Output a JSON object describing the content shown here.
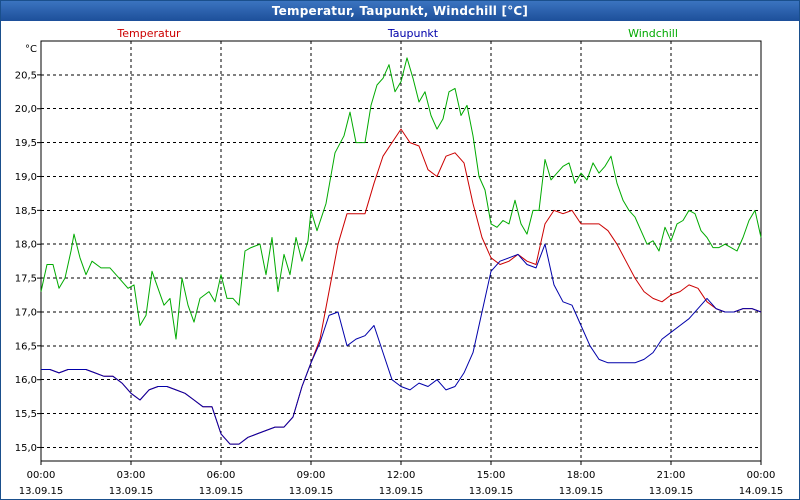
{
  "window": {
    "title": "Temperatur, Taupunkt, Windchill [°C]"
  },
  "chart_data": {
    "type": "line",
    "ylabel": "°C",
    "ylim": [
      14.8,
      21.0
    ],
    "yticks": [
      "15,0",
      "15,5",
      "16,0",
      "16,5",
      "17,0",
      "17,5",
      "18,0",
      "18,5",
      "19,0",
      "19,5",
      "20,0",
      "20,5"
    ],
    "ytick_values": [
      15.0,
      15.5,
      16.0,
      16.5,
      17.0,
      17.5,
      18.0,
      18.5,
      19.0,
      19.5,
      20.0,
      20.5
    ],
    "xlim": [
      0,
      24
    ],
    "xticks": [
      {
        "hour": 0,
        "time": "00:00",
        "date": "13.09.15"
      },
      {
        "hour": 3,
        "time": "03:00",
        "date": "13.09.15"
      },
      {
        "hour": 6,
        "time": "06:00",
        "date": "13.09.15"
      },
      {
        "hour": 9,
        "time": "09:00",
        "date": "13.09.15"
      },
      {
        "hour": 12,
        "time": "12:00",
        "date": "13.09.15"
      },
      {
        "hour": 15,
        "time": "15:00",
        "date": "13.09.15"
      },
      {
        "hour": 18,
        "time": "18:00",
        "date": "13.09.15"
      },
      {
        "hour": 21,
        "time": "21:00",
        "date": "13.09.15"
      },
      {
        "hour": 24,
        "time": "00:00",
        "date": "14.09.15"
      }
    ],
    "grid": true,
    "series": [
      {
        "name": "Temperatur",
        "color": "#cc0000",
        "points": [
          [
            0,
            16.15
          ],
          [
            0.3,
            16.15
          ],
          [
            0.6,
            16.1
          ],
          [
            0.9,
            16.15
          ],
          [
            1.2,
            16.15
          ],
          [
            1.5,
            16.15
          ],
          [
            1.8,
            16.1
          ],
          [
            2.1,
            16.05
          ],
          [
            2.4,
            16.05
          ],
          [
            2.7,
            15.95
          ],
          [
            3.0,
            15.8
          ],
          [
            3.3,
            15.7
          ],
          [
            3.6,
            15.85
          ],
          [
            3.9,
            15.9
          ],
          [
            4.2,
            15.9
          ],
          [
            4.5,
            15.85
          ],
          [
            4.8,
            15.8
          ],
          [
            5.1,
            15.7
          ],
          [
            5.4,
            15.6
          ],
          [
            5.7,
            15.6
          ],
          [
            6.0,
            15.2
          ],
          [
            6.3,
            15.05
          ],
          [
            6.6,
            15.05
          ],
          [
            6.9,
            15.15
          ],
          [
            7.2,
            15.2
          ],
          [
            7.5,
            15.25
          ],
          [
            7.8,
            15.3
          ],
          [
            8.1,
            15.3
          ],
          [
            8.4,
            15.45
          ],
          [
            8.7,
            15.9
          ],
          [
            9.0,
            16.25
          ],
          [
            9.3,
            16.6
          ],
          [
            9.6,
            17.3
          ],
          [
            9.9,
            18.0
          ],
          [
            10.2,
            18.45
          ],
          [
            10.5,
            18.45
          ],
          [
            10.8,
            18.45
          ],
          [
            11.1,
            18.9
          ],
          [
            11.4,
            19.3
          ],
          [
            11.7,
            19.5
          ],
          [
            12.0,
            19.7
          ],
          [
            12.3,
            19.5
          ],
          [
            12.6,
            19.45
          ],
          [
            12.9,
            19.1
          ],
          [
            13.2,
            19.0
          ],
          [
            13.5,
            19.3
          ],
          [
            13.8,
            19.35
          ],
          [
            14.1,
            19.2
          ],
          [
            14.4,
            18.6
          ],
          [
            14.7,
            18.1
          ],
          [
            15.0,
            17.8
          ],
          [
            15.3,
            17.7
          ],
          [
            15.6,
            17.75
          ],
          [
            15.9,
            17.85
          ],
          [
            16.2,
            17.75
          ],
          [
            16.5,
            17.7
          ],
          [
            16.8,
            18.3
          ],
          [
            17.1,
            18.5
          ],
          [
            17.4,
            18.45
          ],
          [
            17.7,
            18.5
          ],
          [
            18.0,
            18.3
          ],
          [
            18.3,
            18.3
          ],
          [
            18.6,
            18.3
          ],
          [
            18.9,
            18.2
          ],
          [
            19.2,
            18.0
          ],
          [
            19.5,
            17.75
          ],
          [
            19.8,
            17.5
          ],
          [
            20.1,
            17.3
          ],
          [
            20.4,
            17.2
          ],
          [
            20.7,
            17.15
          ],
          [
            21.0,
            17.25
          ],
          [
            21.3,
            17.3
          ],
          [
            21.6,
            17.4
          ],
          [
            21.9,
            17.35
          ],
          [
            22.2,
            17.15
          ],
          [
            22.5,
            17.05
          ],
          [
            22.8,
            17.0
          ],
          [
            23.1,
            17.0
          ],
          [
            23.4,
            17.05
          ],
          [
            23.7,
            17.05
          ],
          [
            24.0,
            17.0
          ]
        ]
      },
      {
        "name": "Taupunkt",
        "color": "#0000aa",
        "points": [
          [
            0,
            16.15
          ],
          [
            0.3,
            16.15
          ],
          [
            0.6,
            16.1
          ],
          [
            0.9,
            16.15
          ],
          [
            1.2,
            16.15
          ],
          [
            1.5,
            16.15
          ],
          [
            1.8,
            16.1
          ],
          [
            2.1,
            16.05
          ],
          [
            2.4,
            16.05
          ],
          [
            2.7,
            15.95
          ],
          [
            3.0,
            15.8
          ],
          [
            3.3,
            15.7
          ],
          [
            3.6,
            15.85
          ],
          [
            3.9,
            15.9
          ],
          [
            4.2,
            15.9
          ],
          [
            4.5,
            15.85
          ],
          [
            4.8,
            15.8
          ],
          [
            5.1,
            15.7
          ],
          [
            5.4,
            15.6
          ],
          [
            5.7,
            15.6
          ],
          [
            6.0,
            15.2
          ],
          [
            6.3,
            15.05
          ],
          [
            6.6,
            15.05
          ],
          [
            6.9,
            15.15
          ],
          [
            7.2,
            15.2
          ],
          [
            7.5,
            15.25
          ],
          [
            7.8,
            15.3
          ],
          [
            8.1,
            15.3
          ],
          [
            8.4,
            15.45
          ],
          [
            8.7,
            15.9
          ],
          [
            9.0,
            16.25
          ],
          [
            9.3,
            16.55
          ],
          [
            9.6,
            16.95
          ],
          [
            9.9,
            17.0
          ],
          [
            10.2,
            16.5
          ],
          [
            10.5,
            16.6
          ],
          [
            10.8,
            16.65
          ],
          [
            11.1,
            16.8
          ],
          [
            11.4,
            16.4
          ],
          [
            11.7,
            16.0
          ],
          [
            12.0,
            15.9
          ],
          [
            12.3,
            15.85
          ],
          [
            12.6,
            15.95
          ],
          [
            12.9,
            15.9
          ],
          [
            13.2,
            16.0
          ],
          [
            13.5,
            15.85
          ],
          [
            13.8,
            15.9
          ],
          [
            14.1,
            16.1
          ],
          [
            14.4,
            16.4
          ],
          [
            14.7,
            17.0
          ],
          [
            15.0,
            17.6
          ],
          [
            15.3,
            17.75
          ],
          [
            15.6,
            17.8
          ],
          [
            15.9,
            17.85
          ],
          [
            16.2,
            17.7
          ],
          [
            16.5,
            17.65
          ],
          [
            16.8,
            18.0
          ],
          [
            17.1,
            17.4
          ],
          [
            17.4,
            17.15
          ],
          [
            17.7,
            17.1
          ],
          [
            18.0,
            16.8
          ],
          [
            18.3,
            16.5
          ],
          [
            18.6,
            16.3
          ],
          [
            18.9,
            16.25
          ],
          [
            19.2,
            16.25
          ],
          [
            19.5,
            16.25
          ],
          [
            19.8,
            16.25
          ],
          [
            20.1,
            16.3
          ],
          [
            20.4,
            16.4
          ],
          [
            20.7,
            16.6
          ],
          [
            21.0,
            16.7
          ],
          [
            21.3,
            16.8
          ],
          [
            21.6,
            16.9
          ],
          [
            21.9,
            17.05
          ],
          [
            22.2,
            17.2
          ],
          [
            22.5,
            17.05
          ],
          [
            22.8,
            17.0
          ],
          [
            23.1,
            17.0
          ],
          [
            23.4,
            17.05
          ],
          [
            23.7,
            17.05
          ],
          [
            24.0,
            17.0
          ]
        ]
      },
      {
        "name": "Windchill",
        "color": "#00aa00",
        "points": [
          [
            0,
            17.3
          ],
          [
            0.2,
            17.7
          ],
          [
            0.4,
            17.7
          ],
          [
            0.6,
            17.35
          ],
          [
            0.8,
            17.5
          ],
          [
            1.0,
            17.9
          ],
          [
            1.1,
            18.15
          ],
          [
            1.3,
            17.8
          ],
          [
            1.5,
            17.55
          ],
          [
            1.7,
            17.75
          ],
          [
            2.0,
            17.65
          ],
          [
            2.3,
            17.65
          ],
          [
            2.6,
            17.5
          ],
          [
            2.9,
            17.35
          ],
          [
            3.1,
            17.4
          ],
          [
            3.3,
            16.8
          ],
          [
            3.5,
            16.95
          ],
          [
            3.7,
            17.6
          ],
          [
            3.9,
            17.35
          ],
          [
            4.1,
            17.1
          ],
          [
            4.3,
            17.2
          ],
          [
            4.5,
            16.6
          ],
          [
            4.7,
            17.5
          ],
          [
            4.9,
            17.1
          ],
          [
            5.1,
            16.85
          ],
          [
            5.3,
            17.2
          ],
          [
            5.6,
            17.3
          ],
          [
            5.8,
            17.15
          ],
          [
            6.0,
            17.55
          ],
          [
            6.2,
            17.2
          ],
          [
            6.4,
            17.2
          ],
          [
            6.6,
            17.1
          ],
          [
            6.8,
            17.9
          ],
          [
            7.0,
            17.95
          ],
          [
            7.3,
            18.0
          ],
          [
            7.5,
            17.55
          ],
          [
            7.7,
            18.1
          ],
          [
            7.9,
            17.3
          ],
          [
            8.1,
            17.85
          ],
          [
            8.3,
            17.55
          ],
          [
            8.5,
            18.1
          ],
          [
            8.7,
            17.75
          ],
          [
            8.9,
            18.05
          ],
          [
            9.0,
            18.5
          ],
          [
            9.2,
            18.2
          ],
          [
            9.5,
            18.6
          ],
          [
            9.8,
            19.35
          ],
          [
            10.1,
            19.6
          ],
          [
            10.3,
            19.95
          ],
          [
            10.5,
            19.5
          ],
          [
            10.8,
            19.5
          ],
          [
            11.0,
            20.05
          ],
          [
            11.2,
            20.35
          ],
          [
            11.4,
            20.45
          ],
          [
            11.6,
            20.65
          ],
          [
            11.8,
            20.25
          ],
          [
            12.0,
            20.4
          ],
          [
            12.2,
            20.75
          ],
          [
            12.4,
            20.45
          ],
          [
            12.6,
            20.1
          ],
          [
            12.8,
            20.25
          ],
          [
            13.0,
            19.9
          ],
          [
            13.2,
            19.7
          ],
          [
            13.4,
            19.85
          ],
          [
            13.6,
            20.25
          ],
          [
            13.8,
            20.3
          ],
          [
            14.0,
            19.9
          ],
          [
            14.2,
            20.05
          ],
          [
            14.4,
            19.6
          ],
          [
            14.6,
            19.0
          ],
          [
            14.8,
            18.8
          ],
          [
            15.0,
            18.3
          ],
          [
            15.2,
            18.25
          ],
          [
            15.4,
            18.35
          ],
          [
            15.6,
            18.3
          ],
          [
            15.8,
            18.65
          ],
          [
            16.0,
            18.3
          ],
          [
            16.2,
            18.15
          ],
          [
            16.4,
            18.5
          ],
          [
            16.6,
            18.5
          ],
          [
            16.8,
            19.25
          ],
          [
            17.0,
            18.95
          ],
          [
            17.2,
            19.05
          ],
          [
            17.4,
            19.15
          ],
          [
            17.6,
            19.2
          ],
          [
            17.8,
            18.9
          ],
          [
            18.0,
            19.05
          ],
          [
            18.2,
            18.95
          ],
          [
            18.4,
            19.2
          ],
          [
            18.6,
            19.05
          ],
          [
            18.8,
            19.15
          ],
          [
            19.0,
            19.3
          ],
          [
            19.2,
            18.9
          ],
          [
            19.4,
            18.65
          ],
          [
            19.6,
            18.5
          ],
          [
            19.8,
            18.4
          ],
          [
            20.0,
            18.2
          ],
          [
            20.2,
            18.0
          ],
          [
            20.4,
            18.05
          ],
          [
            20.6,
            17.9
          ],
          [
            20.8,
            18.25
          ],
          [
            21.0,
            18.05
          ],
          [
            21.2,
            18.3
          ],
          [
            21.4,
            18.35
          ],
          [
            21.6,
            18.5
          ],
          [
            21.8,
            18.45
          ],
          [
            22.0,
            18.2
          ],
          [
            22.2,
            18.1
          ],
          [
            22.4,
            17.95
          ],
          [
            22.6,
            17.95
          ],
          [
            22.8,
            18.0
          ],
          [
            23.0,
            17.95
          ],
          [
            23.2,
            17.9
          ],
          [
            23.4,
            18.1
          ],
          [
            23.6,
            18.35
          ],
          [
            23.8,
            18.5
          ],
          [
            24.0,
            18.1
          ]
        ]
      }
    ]
  }
}
